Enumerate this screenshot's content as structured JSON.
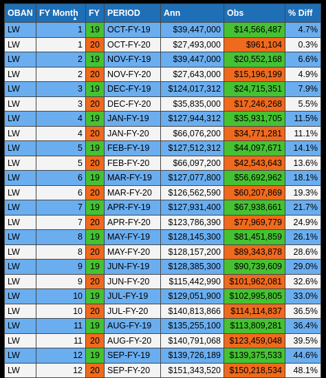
{
  "headers": {
    "oban": "OBAN",
    "fy_month": "FY Month",
    "fy": "FY",
    "period": "PERIOD",
    "ann": "Ann",
    "obs": "Obs",
    "pct_diff": "% Diff"
  },
  "sort_indicator": "▲",
  "colors": {
    "header": "#1f6fb7",
    "row_blue": "#6aaef0",
    "row_white": "#f4f4f4",
    "fy19_green": "#45c232",
    "fy20_orange": "#f06a1d"
  },
  "rows": [
    {
      "oban": "LW",
      "month": "1",
      "fy": "19",
      "period": "OCT-FY-19",
      "ann": "$39,447,000",
      "obs": "$14,566,487",
      "diff": "4.7%"
    },
    {
      "oban": "LW",
      "month": "1",
      "fy": "20",
      "period": "OCT-FY-20",
      "ann": "$27,493,000",
      "obs": "$961,104",
      "diff": "0.3%"
    },
    {
      "oban": "LW",
      "month": "2",
      "fy": "19",
      "period": "NOV-FY-19",
      "ann": "$39,447,000",
      "obs": "$20,552,168",
      "diff": "6.6%"
    },
    {
      "oban": "LW",
      "month": "2",
      "fy": "20",
      "period": "NOV-FY-20",
      "ann": "$27,643,000",
      "obs": "$15,196,199",
      "diff": "4.9%"
    },
    {
      "oban": "LW",
      "month": "3",
      "fy": "19",
      "period": "DEC-FY-19",
      "ann": "$124,017,312",
      "obs": "$24,715,351",
      "diff": "7.9%"
    },
    {
      "oban": "LW",
      "month": "3",
      "fy": "20",
      "period": "DEC-FY-20",
      "ann": "$35,835,000",
      "obs": "$17,246,268",
      "diff": "5.5%"
    },
    {
      "oban": "LW",
      "month": "4",
      "fy": "19",
      "period": "JAN-FY-19",
      "ann": "$127,944,312",
      "obs": "$35,931,705",
      "diff": "11.5%"
    },
    {
      "oban": "LW",
      "month": "4",
      "fy": "20",
      "period": "JAN-FY-20",
      "ann": "$66,076,200",
      "obs": "$34,771,281",
      "diff": "11.1%"
    },
    {
      "oban": "LW",
      "month": "5",
      "fy": "19",
      "period": "FEB-FY-19",
      "ann": "$127,512,312",
      "obs": "$44,097,671",
      "diff": "14.1%"
    },
    {
      "oban": "LW",
      "month": "5",
      "fy": "20",
      "period": "FEB-FY-20",
      "ann": "$66,097,200",
      "obs": "$42,543,643",
      "diff": "13.6%"
    },
    {
      "oban": "LW",
      "month": "6",
      "fy": "19",
      "period": "MAR-FY-19",
      "ann": "$127,077,800",
      "obs": "$56,692,962",
      "diff": "18.1%"
    },
    {
      "oban": "LW",
      "month": "6",
      "fy": "20",
      "period": "MAR-FY-20",
      "ann": "$126,562,590",
      "obs": "$60,207,869",
      "diff": "19.3%"
    },
    {
      "oban": "LW",
      "month": "7",
      "fy": "19",
      "period": "APR-FY-19",
      "ann": "$127,931,400",
      "obs": "$67,938,661",
      "diff": "21.7%"
    },
    {
      "oban": "LW",
      "month": "7",
      "fy": "20",
      "period": "APR-FY-20",
      "ann": "$123,786,390",
      "obs": "$77,969,779",
      "diff": "24.9%"
    },
    {
      "oban": "LW",
      "month": "8",
      "fy": "19",
      "period": "MAY-FY-19",
      "ann": "$128,145,300",
      "obs": "$81,451,859",
      "diff": "26.1%"
    },
    {
      "oban": "LW",
      "month": "8",
      "fy": "20",
      "period": "MAY-FY-20",
      "ann": "$128,157,200",
      "obs": "$89,343,878",
      "diff": "28.6%"
    },
    {
      "oban": "LW",
      "month": "9",
      "fy": "19",
      "period": "JUN-FY-19",
      "ann": "$128,385,300",
      "obs": "$90,739,609",
      "diff": "29.0%"
    },
    {
      "oban": "LW",
      "month": "9",
      "fy": "20",
      "period": "JUN-FY-20",
      "ann": "$115,442,990",
      "obs": "$101,962,081",
      "diff": "32.6%"
    },
    {
      "oban": "LW",
      "month": "10",
      "fy": "19",
      "period": "JUL-FY-19",
      "ann": "$129,051,900",
      "obs": "$102,995,805",
      "diff": "33.0%"
    },
    {
      "oban": "LW",
      "month": "10",
      "fy": "20",
      "period": "JUL-FY-20",
      "ann": "$140,813,866",
      "obs": "$114,114,837",
      "diff": "36.5%"
    },
    {
      "oban": "LW",
      "month": "11",
      "fy": "19",
      "period": "AUG-FY-19",
      "ann": "$135,255,100",
      "obs": "$113,809,281",
      "diff": "36.4%"
    },
    {
      "oban": "LW",
      "month": "11",
      "fy": "20",
      "period": "AUG-FY-20",
      "ann": "$140,791,068",
      "obs": "$123,459,048",
      "diff": "39.5%"
    },
    {
      "oban": "LW",
      "month": "12",
      "fy": "19",
      "period": "SEP-FY-19",
      "ann": "$139,726,189",
      "obs": "$139,375,533",
      "diff": "44.6%"
    },
    {
      "oban": "LW",
      "month": "12",
      "fy": "20",
      "period": "SEP-FY-20",
      "ann": "$151,343,520",
      "obs": "$150,218,534",
      "diff": "48.1%"
    }
  ]
}
